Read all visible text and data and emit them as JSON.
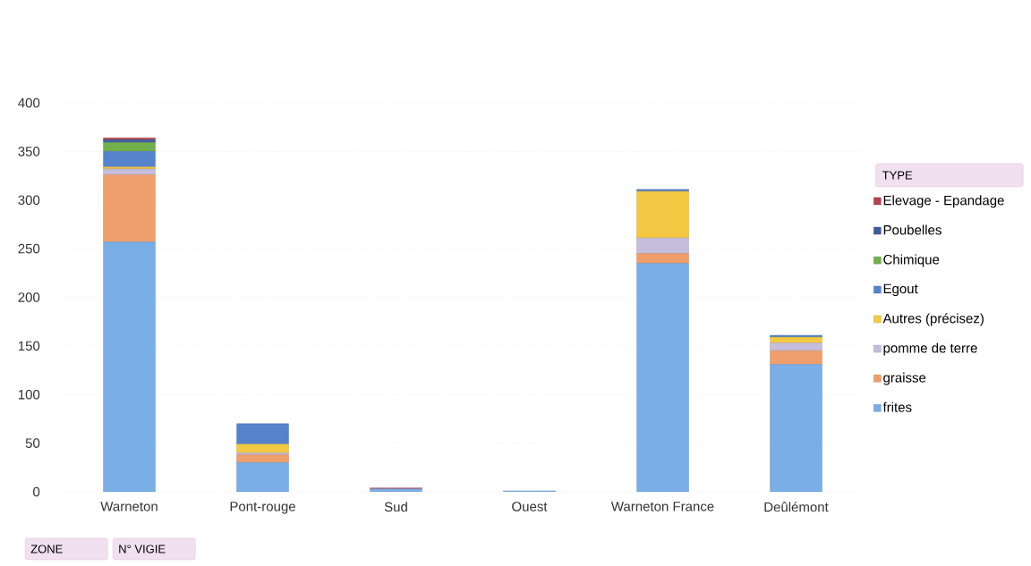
{
  "chart_data": {
    "type": "bar",
    "stacked": true,
    "categories": [
      "Warneton",
      "Pont-rouge",
      "Sud",
      "Ouest",
      "Warneton France",
      "Deûlémont"
    ],
    "series": [
      {
        "name": "frites",
        "color": "#7aaee6",
        "values": [
          257,
          30,
          3,
          1,
          235,
          131
        ]
      },
      {
        "name": "graisse",
        "color": "#ef9f6c",
        "values": [
          69,
          8,
          0,
          0,
          10,
          14
        ]
      },
      {
        "name": "pomme de terre",
        "color": "#c5bddb",
        "values": [
          6,
          2,
          0,
          0,
          16,
          8
        ]
      },
      {
        "name": "Autres (précisez)",
        "color": "#f3c944",
        "values": [
          2,
          9,
          0,
          0,
          48,
          6
        ]
      },
      {
        "name": "Egout",
        "color": "#5683cc",
        "values": [
          16,
          21,
          0,
          0,
          2,
          2
        ]
      },
      {
        "name": "Chimique",
        "color": "#72b04e",
        "values": [
          9,
          0,
          0,
          0,
          0,
          0
        ]
      },
      {
        "name": "Poubelles",
        "color": "#3e5d9c",
        "values": [
          3,
          0,
          0,
          0,
          0,
          0
        ]
      },
      {
        "name": "Elevage - Epandage",
        "color": "#b3434f",
        "values": [
          2,
          0,
          1,
          0,
          0,
          0
        ]
      }
    ],
    "ylim": [
      0,
      400
    ],
    "yticks": [
      0,
      50,
      100,
      150,
      200,
      250,
      300,
      350,
      400
    ],
    "grid": "y",
    "legend": "right",
    "legend_title": "TYPE",
    "annotations": [
      "ZONE",
      "N° VIGIE"
    ]
  }
}
